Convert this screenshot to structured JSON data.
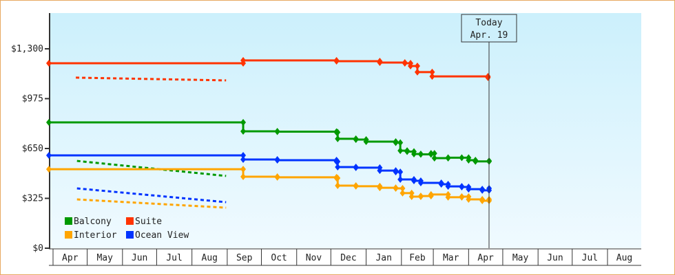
{
  "chart_data": {
    "type": "line",
    "step": true,
    "ylim": [
      0,
      1530
    ],
    "yticks": [
      "$0",
      "$325",
      "$650",
      "$975",
      "$1,300"
    ],
    "ytick_values": [
      0,
      325,
      650,
      975,
      1300
    ],
    "xticks": [
      "Apr",
      "May",
      "Jun",
      "Jul",
      "Aug",
      "Sep",
      "Oct",
      "Nov",
      "Dec",
      "Jan",
      "Feb",
      "Mar",
      "Apr",
      "May",
      "Jun",
      "Jul",
      "Aug"
    ],
    "grid": false,
    "legend": "bottom-left",
    "today": {
      "label": "Today",
      "date_label": "Apr. 19",
      "x": "Apr 19"
    },
    "series": [
      {
        "name": "Balcony",
        "color": "#009900",
        "points": [
          [
            "Mar 28",
            820
          ],
          [
            "Sep 15",
            762
          ],
          [
            "Oct 15",
            760
          ],
          [
            "Dec 6",
            756
          ],
          [
            "Dec 7",
            713
          ],
          [
            "Dec 23",
            708
          ],
          [
            "Jan 1",
            695
          ],
          [
            "Jan 27",
            688
          ],
          [
            "Jan 31",
            636
          ],
          [
            "Feb 6",
            630
          ],
          [
            "Feb 12",
            614
          ],
          [
            "Feb 18",
            612
          ],
          [
            "Feb 27",
            618
          ],
          [
            "Mar 2",
            587
          ],
          [
            "Mar 14",
            590
          ],
          [
            "Mar 26",
            590
          ],
          [
            "Apr 1",
            574
          ],
          [
            "Apr 7",
            566
          ],
          [
            "Apr 19",
            569
          ]
        ],
        "forecast": [
          [
            "Apr 19",
            569
          ],
          [
            "Aug 31",
            471
          ]
        ]
      },
      {
        "name": "Suite",
        "color": "#ff3300",
        "points": [
          [
            "Mar 28",
            1206
          ],
          [
            "Sep 15",
            1224
          ],
          [
            "Dec 6",
            1219
          ],
          [
            "Jan 13",
            1210
          ],
          [
            "Feb 4",
            1206
          ],
          [
            "Feb 9",
            1188
          ],
          [
            "Feb 15",
            1148
          ],
          [
            "Feb 28",
            1120
          ],
          [
            "Apr 18",
            1112
          ]
        ],
        "forecast": [
          [
            "Apr 18",
            1112
          ],
          [
            "Aug 31",
            1094
          ]
        ]
      },
      {
        "name": "Interior",
        "color": "#ffa500",
        "points": [
          [
            "Mar 28",
            515
          ],
          [
            "Sep 15",
            466
          ],
          [
            "Oct 15",
            462
          ],
          [
            "Dec 6",
            457
          ],
          [
            "Dec 7",
            408
          ],
          [
            "Dec 23",
            404
          ],
          [
            "Jan 13",
            394
          ],
          [
            "Jan 27",
            390
          ],
          [
            "Feb 2",
            359
          ],
          [
            "Feb 10",
            336
          ],
          [
            "Feb 18",
            340
          ],
          [
            "Feb 27",
            350
          ],
          [
            "Mar 14",
            332
          ],
          [
            "Mar 26",
            336
          ],
          [
            "Apr 1",
            318
          ],
          [
            "Apr 13",
            309
          ],
          [
            "Apr 19",
            318
          ]
        ],
        "forecast": [
          [
            "Apr 19",
            318
          ],
          [
            "Aug 31",
            264
          ]
        ]
      },
      {
        "name": "Ocean View",
        "color": "#0033ff",
        "points": [
          [
            "Mar 28",
            605
          ],
          [
            "Sep 15",
            578
          ],
          [
            "Oct 15",
            574
          ],
          [
            "Dec 6",
            565
          ],
          [
            "Dec 7",
            529
          ],
          [
            "Dec 23",
            525
          ],
          [
            "Jan 13",
            506
          ],
          [
            "Jan 27",
            497
          ],
          [
            "Jan 31",
            448
          ],
          [
            "Feb 12",
            439
          ],
          [
            "Feb 18",
            426
          ],
          [
            "Mar 8",
            417
          ],
          [
            "Mar 14",
            403
          ],
          [
            "Mar 26",
            399
          ],
          [
            "Apr 1",
            385
          ],
          [
            "Apr 13",
            377
          ],
          [
            "Apr 19",
            390
          ]
        ],
        "forecast": [
          [
            "Apr 19",
            390
          ],
          [
            "Aug 31",
            300
          ]
        ]
      }
    ]
  }
}
